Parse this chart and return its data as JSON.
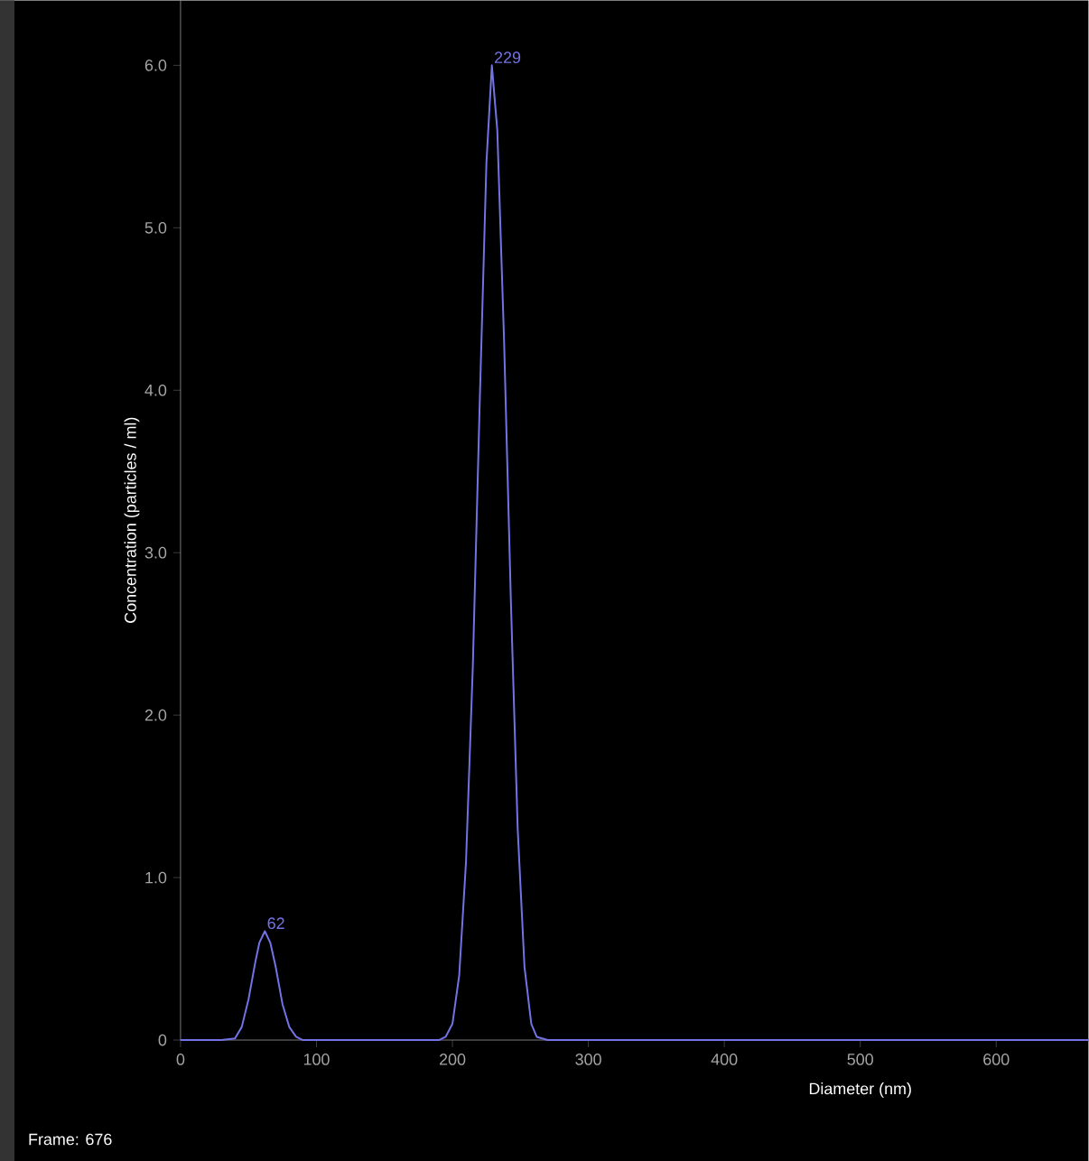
{
  "chart_data": {
    "type": "line",
    "xlabel": "Diameter (nm)",
    "ylabel": "Concentration (particles / ml)",
    "x": [
      0,
      30,
      40,
      45,
      50,
      55,
      58,
      62,
      66,
      70,
      75,
      80,
      85,
      90,
      100,
      150,
      190,
      195,
      200,
      205,
      210,
      215,
      220,
      225,
      229,
      233,
      238,
      243,
      248,
      253,
      258,
      262,
      270,
      400,
      668
    ],
    "series": [
      {
        "color": "#7373e6",
        "values": [
          0,
          0,
          0.01,
          0.08,
          0.25,
          0.48,
          0.6,
          0.67,
          0.6,
          0.45,
          0.22,
          0.08,
          0.02,
          0,
          0,
          0,
          0,
          0.02,
          0.1,
          0.4,
          1.1,
          2.3,
          3.9,
          5.4,
          6.0,
          5.6,
          4.3,
          2.7,
          1.3,
          0.45,
          0.1,
          0.02,
          0,
          0,
          0
        ]
      }
    ],
    "xlim": [
      0,
      668
    ],
    "ylim": [
      0,
      6.4
    ],
    "xticks": [
      0,
      100,
      200,
      300,
      400,
      500,
      600
    ],
    "yticks": [
      {
        "value": 0,
        "label": "0"
      },
      {
        "value": 1,
        "label": "1.0"
      },
      {
        "value": 2,
        "label": "2.0"
      },
      {
        "value": 3,
        "label": "3.0"
      },
      {
        "value": 4,
        "label": "4.0"
      },
      {
        "value": 5,
        "label": "5.0"
      },
      {
        "value": 6,
        "label": "6.0"
      }
    ],
    "grid": false,
    "marker": "none",
    "line_style": "solid",
    "annotations": [
      {
        "text": "62",
        "x": 62,
        "y": 0.67
      },
      {
        "text": "229",
        "x": 229,
        "y": 6.0
      },
      "Frame: 676"
    ]
  }
}
